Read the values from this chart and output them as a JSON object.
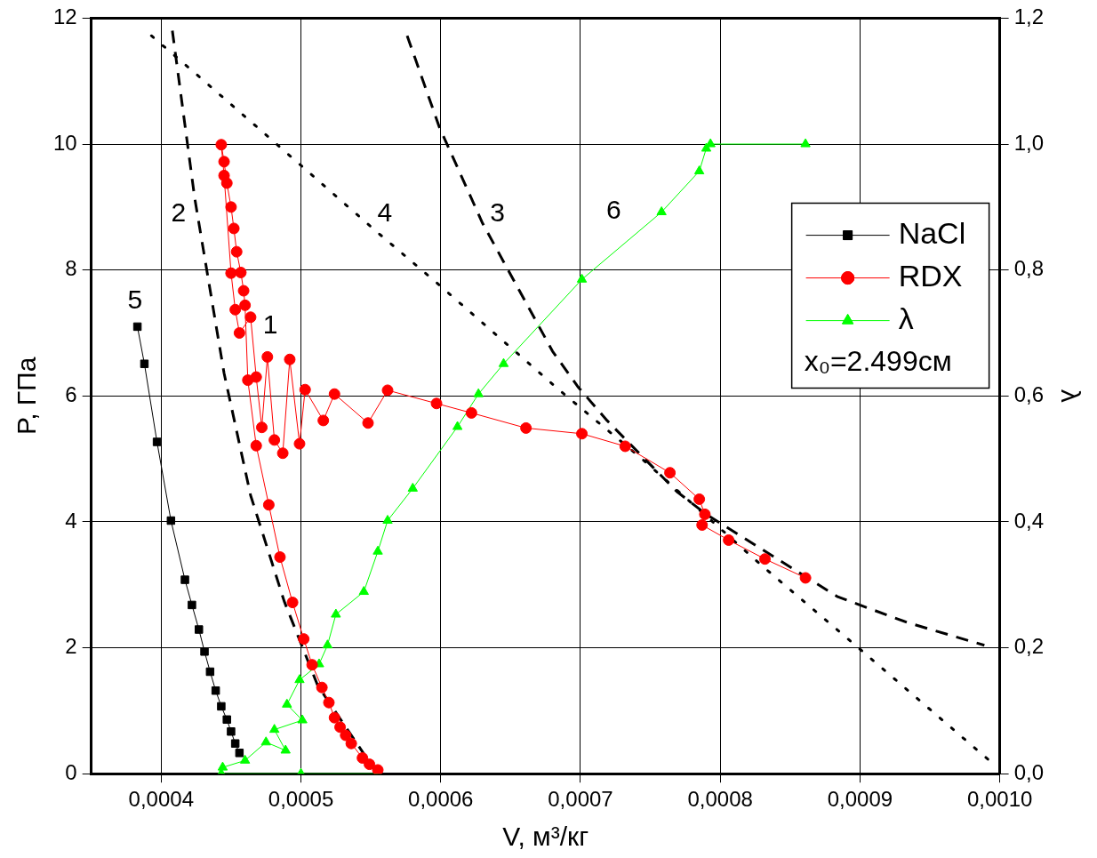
{
  "chart_data": {
    "type": "line",
    "xlabel": "V, м³/кг",
    "ylabel": "P, ГПа",
    "y2label": "λ",
    "xlim": [
      0.00035,
      0.001
    ],
    "xticks": [
      {
        "value": 0.0004,
        "label": "0,0004"
      },
      {
        "value": 0.0005,
        "label": "0,0005"
      },
      {
        "value": 0.0006,
        "label": "0,0006"
      },
      {
        "value": 0.0007,
        "label": "0,0007"
      },
      {
        "value": 0.0008,
        "label": "0,0008"
      },
      {
        "value": 0.0009,
        "label": "0,0009"
      },
      {
        "value": 0.001,
        "label": "0,0010"
      }
    ],
    "ylim": [
      0,
      12
    ],
    "yticks": [
      0,
      2,
      4,
      6,
      8,
      10,
      12
    ],
    "y2lim": [
      0,
      1.2
    ],
    "y2ticks": [
      {
        "value": 0,
        "label": "0,0"
      },
      {
        "value": 0.2,
        "label": "0,2"
      },
      {
        "value": 0.4,
        "label": "0,4"
      },
      {
        "value": 0.6,
        "label": "0,6"
      },
      {
        "value": 0.8,
        "label": "0,8"
      },
      {
        "value": 1,
        "label": "1,0"
      },
      {
        "value": 1.2,
        "label": "1,2"
      }
    ],
    "grid": true,
    "legend": "right",
    "series": [
      {
        "name": "NaCl",
        "color": "#000000",
        "marker": "square",
        "x": [
          0.000383,
          0.000388,
          0.000397,
          0.000407,
          0.000417,
          0.000422,
          0.000427,
          0.000431,
          0.000435,
          0.000439,
          0.000443,
          0.000447,
          0.00045,
          0.000453,
          0.000456
        ],
        "values": [
          7.1,
          6.51,
          5.27,
          4.02,
          3.08,
          2.68,
          2.29,
          1.94,
          1.62,
          1.32,
          1.07,
          0.86,
          0.67,
          0.48,
          0.33
        ]
      },
      {
        "name": "RDX",
        "color": "#ff0000",
        "marker": "circle",
        "x": [
          0.000555,
          0.000549,
          0.000544,
          0.000536,
          0.000532,
          0.000528,
          0.000524,
          0.00052,
          0.000515,
          0.000508,
          0.000502,
          0.000494,
          0.000485,
          0.000477,
          0.000468,
          0.000462,
          0.00046,
          0.000459,
          0.000457,
          0.000454,
          0.000452,
          0.00045,
          0.000447,
          0.000445,
          0.000443,
          0.000445,
          0.00045,
          0.000453,
          0.000456,
          0.000464,
          0.000468,
          0.000472,
          0.000476,
          0.000481,
          0.000487,
          0.000492,
          0.000499,
          0.000503,
          0.000516,
          0.000524,
          0.000548,
          0.000562,
          0.000597,
          0.000622,
          0.000661,
          0.000701,
          0.000732,
          0.000764,
          0.000785,
          0.000789,
          0.000787,
          0.000806,
          0.000832,
          0.000861
        ],
        "values": [
          0.06,
          0.15,
          0.25,
          0.48,
          0.61,
          0.74,
          0.89,
          1.13,
          1.37,
          1.73,
          2.14,
          2.72,
          3.44,
          4.27,
          5.21,
          6.25,
          7.44,
          7.67,
          7.96,
          8.29,
          8.66,
          9.0,
          9.38,
          9.72,
          9.99,
          9.5,
          7.95,
          7.37,
          7.0,
          7.25,
          6.3,
          5.5,
          6.62,
          5.3,
          5.09,
          6.58,
          5.24,
          6.1,
          5.61,
          6.03,
          5.57,
          6.09,
          5.88,
          5.73,
          5.49,
          5.4,
          5.2,
          4.78,
          4.36,
          4.12,
          3.95,
          3.71,
          3.41,
          3.11
        ]
      },
      {
        "name": "λ",
        "color": "#00ff00",
        "marker": "triangle",
        "axis": "y2",
        "x": [
          0.000555,
          0.0005,
          0.000443,
          0.000444,
          0.00046,
          0.000475,
          0.000489,
          0.000481,
          0.000501,
          0.00049,
          0.000499,
          0.000513,
          0.000519,
          0.000525,
          0.000545,
          0.000555,
          0.000562,
          0.00058,
          0.000612,
          0.000627,
          0.000645,
          0.000701,
          0.000758,
          0.000785,
          0.00079,
          0.000793,
          0.000861
        ],
        "values": [
          0,
          0,
          0,
          0.01,
          0.021,
          0.05,
          0.037,
          0.07,
          0.085,
          0.11,
          0.149,
          0.174,
          0.204,
          0.253,
          0.289,
          0.353,
          0.402,
          0.453,
          0.551,
          0.603,
          0.651,
          0.785,
          0.892,
          0.957,
          0.993,
          1.0,
          1.0
        ]
      },
      {
        "color": "#000000",
        "marker": "none",
        "line_style": "dashed",
        "x": [
          0.000408,
          0.000424,
          0.000445,
          0.000464,
          0.000488,
          0.000512,
          0.000547,
          0.000553
        ],
        "values": [
          11.8,
          9.14,
          6.36,
          4.42,
          2.74,
          1.4,
          0.25,
          0.05
        ]
      },
      {
        "color": "#000000",
        "marker": "none",
        "line_style": "dashed",
        "x": [
          0.000576,
          0.000599,
          0.00063,
          0.00068,
          0.000698,
          0.000719,
          0.000769,
          0.00079,
          0.000884,
          0.000934,
          0.000989
        ],
        "values": [
          11.72,
          10.27,
          8.74,
          6.71,
          6.15,
          5.61,
          4.48,
          4.12,
          2.81,
          2.4,
          2.04
        ]
      },
      {
        "color": "#000000",
        "marker": "none",
        "line_style": "dotted",
        "x": [
          0.000393,
          0.000422,
          0.000481,
          0.000553,
          0.000597,
          0.000685,
          0.000743,
          0.000829,
          0.000903,
          0.000992
        ],
        "values": [
          11.72,
          11.17,
          10.03,
          8.63,
          7.8,
          6.09,
          5.02,
          3.32,
          1.92,
          0.22
        ]
      }
    ],
    "annotations": [
      "1",
      "2",
      "3",
      "4",
      "5",
      "6",
      "x₀=2.499см"
    ]
  }
}
